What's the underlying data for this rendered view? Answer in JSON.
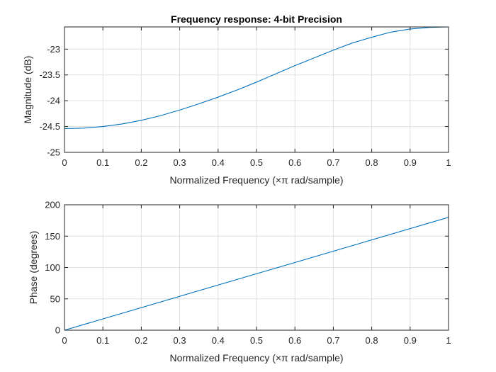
{
  "chart_data": [
    {
      "type": "line",
      "title": "Frequency response: 4-bit Precision",
      "xlabel": "Normalized Frequency  (×π rad/sample)",
      "ylabel": "Magnitude (dB)",
      "xlim": [
        0,
        1
      ],
      "ylim": [
        -25,
        -22.57
      ],
      "xticks": [
        0,
        0.1,
        0.2,
        0.3,
        0.4,
        0.5,
        0.6,
        0.7,
        0.8,
        0.9,
        1
      ],
      "xtick_labels": [
        "0",
        "0.1",
        "0.2",
        "0.3",
        "0.4",
        "0.5",
        "0.6",
        "0.7",
        "0.8",
        "0.9",
        "1"
      ],
      "yticks": [
        -25,
        -24.5,
        -24,
        -23.5,
        -23
      ],
      "ytick_labels": [
        "-25",
        "-24.5",
        "-24",
        "-23.5",
        "-23"
      ],
      "grid": true,
      "color": "#0072bd",
      "series": [
        {
          "x": [
            0,
            0.05,
            0.1,
            0.15,
            0.2,
            0.25,
            0.3,
            0.35,
            0.4,
            0.45,
            0.5,
            0.55,
            0.6,
            0.65,
            0.7,
            0.75,
            0.8,
            0.85,
            0.9,
            0.95,
            1
          ],
          "values": [
            -24.54,
            -24.53,
            -24.5,
            -24.45,
            -24.38,
            -24.29,
            -24.18,
            -24.06,
            -23.93,
            -23.79,
            -23.64,
            -23.48,
            -23.32,
            -23.17,
            -23.02,
            -22.88,
            -22.77,
            -22.67,
            -22.61,
            -22.58,
            -22.57
          ]
        }
      ]
    },
    {
      "type": "line",
      "title": "",
      "xlabel": "Normalized Frequency  (×π rad/sample)",
      "ylabel": "Phase (degrees)",
      "xlim": [
        0,
        1
      ],
      "ylim": [
        0,
        200
      ],
      "xticks": [
        0,
        0.1,
        0.2,
        0.3,
        0.4,
        0.5,
        0.6,
        0.7,
        0.8,
        0.9,
        1
      ],
      "xtick_labels": [
        "0",
        "0.1",
        "0.2",
        "0.3",
        "0.4",
        "0.5",
        "0.6",
        "0.7",
        "0.8",
        "0.9",
        "1"
      ],
      "yticks": [
        0,
        50,
        100,
        150,
        200
      ],
      "ytick_labels": [
        "0",
        "50",
        "100",
        "150",
        "200"
      ],
      "grid": true,
      "color": "#0072bd",
      "series": [
        {
          "x": [
            0,
            1
          ],
          "values": [
            0,
            180
          ]
        }
      ]
    }
  ]
}
